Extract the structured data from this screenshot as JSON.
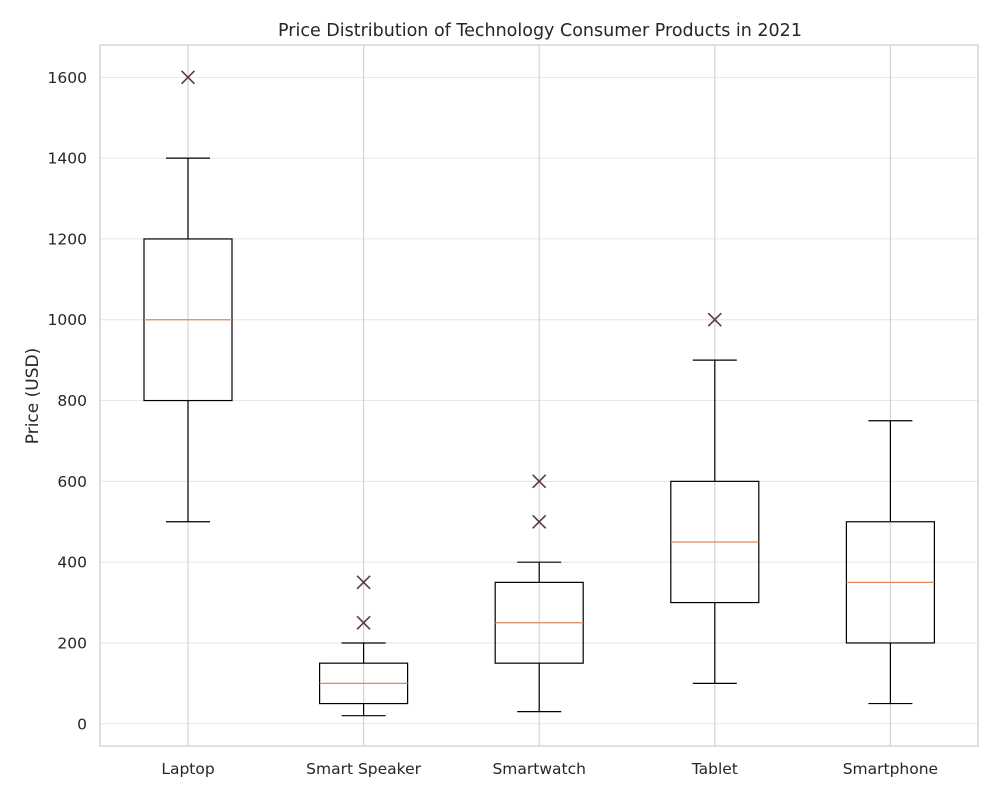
{
  "chart_data": {
    "type": "box",
    "title": "Price Distribution of Technology Consumer Products in 2021",
    "xlabel": "",
    "ylabel": "Price (USD)",
    "ylim": [
      -55,
      1680
    ],
    "yticks": [
      0,
      200,
      400,
      600,
      800,
      1000,
      1200,
      1400,
      1600
    ],
    "grid": true,
    "categories": [
      "Laptop",
      "Smart Speaker",
      "Smartwatch",
      "Tablet",
      "Smartphone"
    ],
    "boxes": [
      {
        "min": 500,
        "q1": 800,
        "median": 1000,
        "q3": 1200,
        "max": 1400,
        "outliers": [
          1600
        ]
      },
      {
        "min": 20,
        "q1": 50,
        "median": 100,
        "q3": 150,
        "max": 200,
        "outliers": [
          250,
          350
        ]
      },
      {
        "min": 30,
        "q1": 150,
        "median": 250,
        "q3": 350,
        "max": 400,
        "outliers": [
          500,
          600
        ]
      },
      {
        "min": 100,
        "q1": 300,
        "median": 450,
        "q3": 600,
        "max": 900,
        "outliers": [
          1000
        ]
      },
      {
        "min": 50,
        "q1": 200,
        "median": 350,
        "q3": 500,
        "max": 750,
        "outliers": []
      }
    ],
    "colors": {
      "box": "#000000",
      "median": "#e1885f",
      "outlier": "#5c3a48",
      "grid": "#e6e6e6",
      "xgrid": "#d5d5d5",
      "spine": "#cccccc"
    }
  }
}
